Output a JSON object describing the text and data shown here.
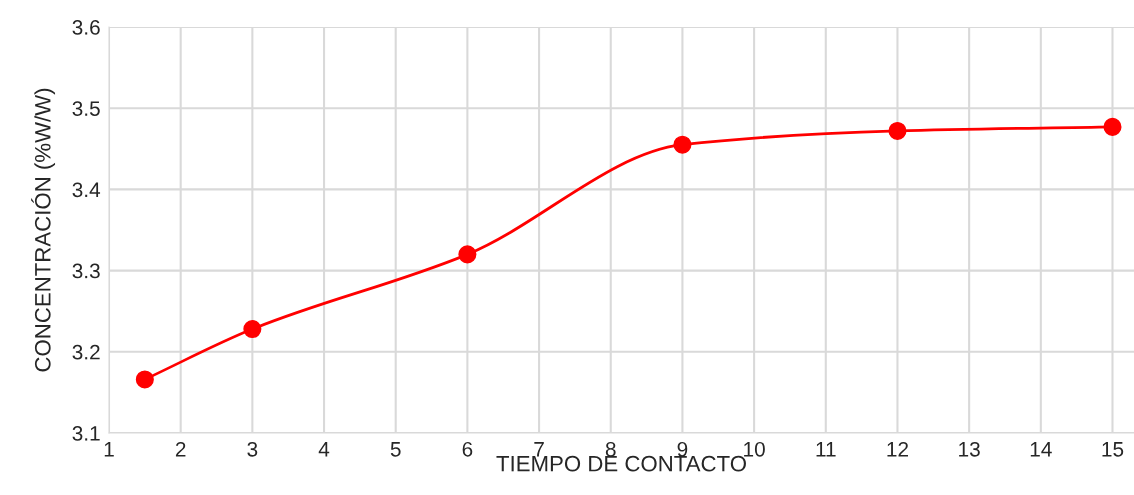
{
  "chart_data": {
    "type": "line",
    "xlabel": "TIEMPO DE CONTACTO",
    "ylabel": "CONCENTRACIÓN (%W/W)",
    "x": [
      1.5,
      3,
      6,
      9,
      12,
      15
    ],
    "series": [
      {
        "color": "#ff0000",
        "values": [
          3.166,
          3.228,
          3.32,
          3.455,
          3.472,
          3.477
        ]
      }
    ],
    "xlim": [
      1,
      15.3
    ],
    "xticks": [
      1,
      2,
      3,
      4,
      5,
      6,
      7,
      8,
      9,
      10,
      11,
      12,
      13,
      14,
      15
    ],
    "ylim": [
      3.1,
      3.6
    ],
    "yticks": [
      {
        "value": 3.1,
        "label": "3.1"
      },
      {
        "value": 3.2,
        "label": "3.2"
      },
      {
        "value": 3.3,
        "label": "3.3"
      },
      {
        "value": 3.4,
        "label": "3.4"
      },
      {
        "value": 3.5,
        "label": "3.5"
      },
      {
        "value": 3.6,
        "label": "3.6"
      }
    ],
    "grid": true,
    "marker": "circle",
    "line_style": "solid"
  }
}
